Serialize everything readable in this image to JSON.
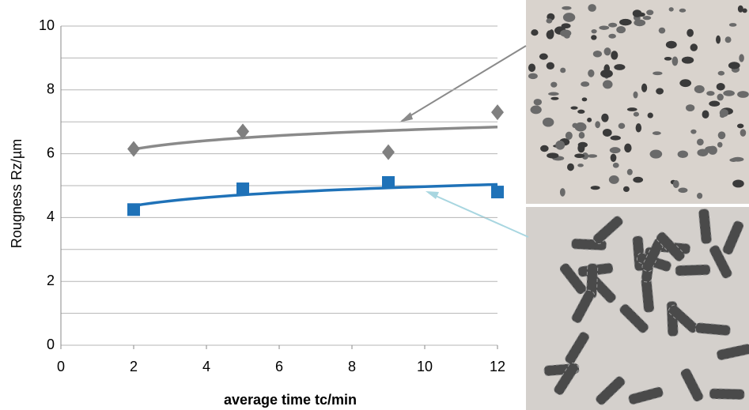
{
  "chart_data": {
    "type": "scatter",
    "x_label": "average time tc/min",
    "y_label": "Rougness Rz/µm",
    "xlim": [
      0,
      12
    ],
    "xticks": [
      0,
      2,
      4,
      6,
      8,
      10,
      12
    ],
    "ylim": [
      0,
      10
    ],
    "yticks": [
      0,
      2,
      4,
      6,
      8,
      10
    ],
    "minor_yticks": [
      1,
      3,
      5,
      7,
      9
    ],
    "grid": true,
    "trendline": "logarithmic",
    "series": [
      {
        "marker": "diamond",
        "color": "#808080",
        "line_color": "#8a8a8a",
        "x": [
          2,
          5,
          9,
          12
        ],
        "values": [
          6.15,
          6.7,
          6.05,
          7.3
        ]
      },
      {
        "marker": "square",
        "color": "#1f72b8",
        "line_color": "#1f72b8",
        "x": [
          2,
          5,
          9,
          12
        ],
        "values": [
          4.25,
          4.9,
          5.1,
          4.8
        ]
      }
    ]
  }
}
